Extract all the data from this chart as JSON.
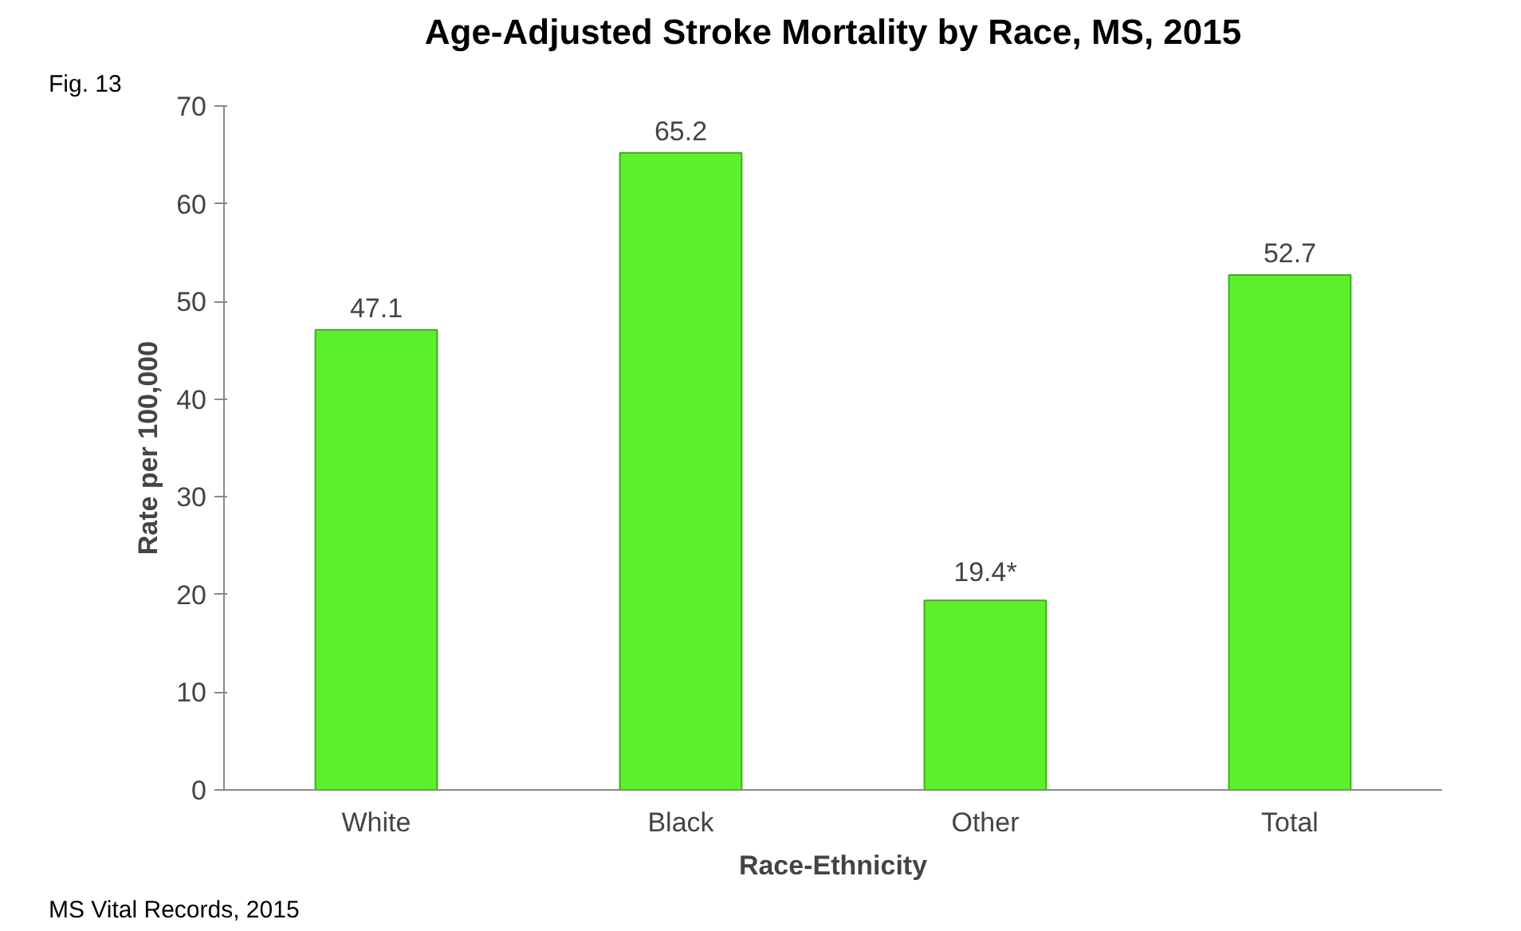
{
  "chart_data": {
    "type": "bar",
    "title": "Age-Adjusted Stroke Mortality by Race, MS, 2015",
    "xlabel": "Race-Ethnicity",
    "ylabel": "Rate per 100,000",
    "categories": [
      "White",
      "Black",
      "Other",
      "Total"
    ],
    "values": [
      47.1,
      65.2,
      19.4,
      52.7
    ],
    "value_labels": [
      "47.1",
      "65.2",
      "19.4*",
      "52.7"
    ],
    "color": "#5df02c",
    "ylim": [
      0,
      70
    ],
    "yticks": [
      0,
      10,
      20,
      30,
      40,
      50,
      60,
      70
    ],
    "grid": false,
    "annotations": [
      "Fig. 13",
      "MS Vital Records, 2015"
    ]
  }
}
